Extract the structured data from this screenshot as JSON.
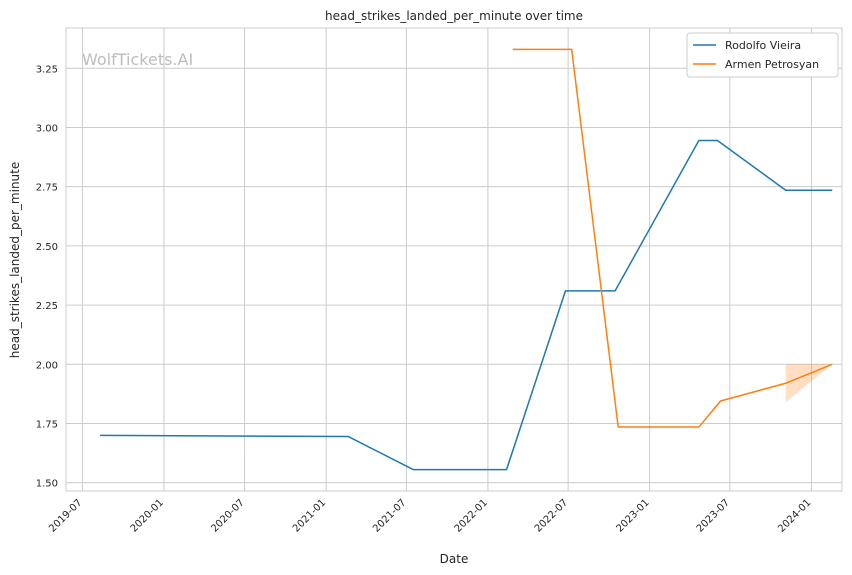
{
  "chart_data": {
    "type": "line",
    "title": "head_strikes_landed_per_minute over time",
    "xlabel": "Date",
    "ylabel": "head_strikes_landed_per_minute",
    "watermark": "WolfTickets.AI",
    "x_ticks": [
      "2019-07",
      "2020-01",
      "2020-07",
      "2021-01",
      "2021-07",
      "2022-01",
      "2022-07",
      "2023-01",
      "2023-07",
      "2024-01"
    ],
    "y_ticks": [
      "1.50",
      "1.75",
      "2.00",
      "2.25",
      "2.50",
      "2.75",
      "3.00",
      "3.25"
    ],
    "xlim": [
      "2019-05-25",
      "2024-03-10"
    ],
    "ylim": [
      1.465,
      3.42
    ],
    "grid": true,
    "legend_position": "top-right",
    "series": [
      {
        "name": "Rodolfo Vieira",
        "color": "#1f77b4",
        "points": [
          {
            "x": "2019-08-10",
            "y": 1.7
          },
          {
            "x": "2021-02-20",
            "y": 1.695
          },
          {
            "x": "2021-07-17",
            "y": 1.555
          },
          {
            "x": "2022-02-12",
            "y": 1.555
          },
          {
            "x": "2022-06-25",
            "y": 2.31
          },
          {
            "x": "2022-10-15",
            "y": 2.31
          },
          {
            "x": "2023-04-22",
            "y": 2.945
          },
          {
            "x": "2023-06-03",
            "y": 2.945
          },
          {
            "x": "2023-11-04",
            "y": 2.735
          },
          {
            "x": "2024-02-17",
            "y": 2.735
          }
        ]
      },
      {
        "name": "Armen Petrosyan",
        "color": "#ff7f0e",
        "points": [
          {
            "x": "2022-02-26",
            "y": 3.33
          },
          {
            "x": "2022-07-09",
            "y": 3.33
          },
          {
            "x": "2022-10-22",
            "y": 1.735
          },
          {
            "x": "2023-04-22",
            "y": 1.735
          },
          {
            "x": "2023-06-10",
            "y": 1.845
          },
          {
            "x": "2023-11-04",
            "y": 1.92
          },
          {
            "x": "2024-02-17",
            "y": 2.0
          }
        ],
        "band": [
          {
            "x": "2023-11-04",
            "low": 1.84,
            "high": 2.0
          },
          {
            "x": "2024-02-17",
            "low": 2.0,
            "high": 2.0
          }
        ]
      }
    ]
  }
}
